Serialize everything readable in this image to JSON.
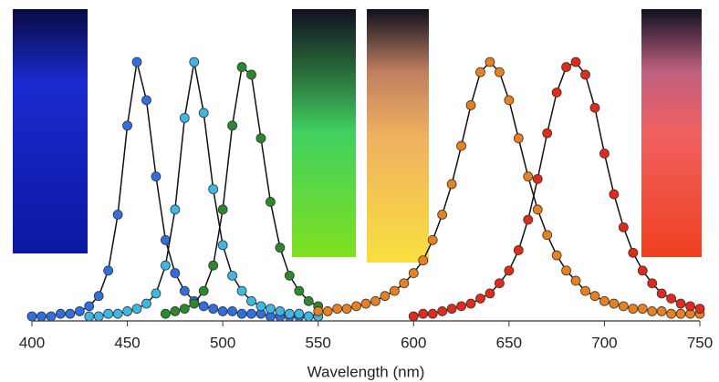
{
  "chart_data": {
    "type": "scatter",
    "x_label": "Wavelength (nm)",
    "xlim": [
      400,
      750
    ],
    "xticks": [
      400,
      450,
      500,
      550,
      600,
      650,
      700,
      750
    ],
    "ylim": [
      0,
      1
    ],
    "series": [
      {
        "color": "#2f6fe0",
        "x": [
          400,
          405,
          410,
          415,
          420,
          425,
          430,
          435,
          440,
          445,
          450,
          455,
          460,
          465,
          470,
          475,
          480,
          485,
          490,
          495,
          500,
          505,
          510,
          515,
          520,
          525,
          530,
          535,
          540,
          545,
          550
        ],
        "values": [
          0,
          0,
          0,
          0.01,
          0.01,
          0.02,
          0.04,
          0.08,
          0.18,
          0.4,
          0.75,
          1,
          0.85,
          0.55,
          0.3,
          0.17,
          0.1,
          0.06,
          0.04,
          0.03,
          0.02,
          0.02,
          0.01,
          0.01,
          0.01,
          0,
          0,
          0,
          0,
          0,
          0
        ]
      },
      {
        "color": "#3cb8e6",
        "x": [
          430,
          435,
          440,
          445,
          450,
          455,
          460,
          465,
          470,
          475,
          480,
          485,
          490,
          495,
          500,
          505,
          510,
          515,
          520,
          525,
          530,
          535,
          540,
          545,
          550
        ],
        "values": [
          0,
          0,
          0.01,
          0.01,
          0.02,
          0.03,
          0.05,
          0.09,
          0.2,
          0.42,
          0.78,
          1,
          0.8,
          0.5,
          0.28,
          0.16,
          0.1,
          0.06,
          0.04,
          0.03,
          0.02,
          0.01,
          0.01,
          0,
          0
        ]
      },
      {
        "color": "#2a8a2a",
        "x": [
          470,
          475,
          480,
          485,
          490,
          495,
          500,
          505,
          510,
          515,
          520,
          525,
          530,
          535,
          540,
          545,
          550
        ],
        "values": [
          0.01,
          0.02,
          0.03,
          0.05,
          0.1,
          0.2,
          0.42,
          0.75,
          0.98,
          0.95,
          0.7,
          0.45,
          0.27,
          0.16,
          0.1,
          0.06,
          0.04
        ]
      },
      {
        "color": "#e8801e",
        "x": [
          550,
          555,
          560,
          565,
          570,
          575,
          580,
          585,
          590,
          595,
          600,
          605,
          610,
          615,
          620,
          625,
          630,
          635,
          640,
          645,
          650,
          655,
          660,
          665,
          670,
          675,
          680,
          685,
          690,
          695,
          700,
          705,
          710,
          715,
          720,
          725,
          730,
          735,
          740,
          745,
          750
        ],
        "values": [
          0.02,
          0.02,
          0.03,
          0.03,
          0.04,
          0.05,
          0.06,
          0.08,
          0.1,
          0.13,
          0.17,
          0.22,
          0.3,
          0.4,
          0.52,
          0.67,
          0.83,
          0.96,
          1,
          0.96,
          0.85,
          0.7,
          0.55,
          0.42,
          0.32,
          0.24,
          0.18,
          0.14,
          0.1,
          0.08,
          0.06,
          0.05,
          0.04,
          0.03,
          0.03,
          0.02,
          0.02,
          0.01,
          0.01,
          0.01,
          0.01
        ]
      },
      {
        "color": "#e02a1a",
        "x": [
          600,
          605,
          610,
          615,
          620,
          625,
          630,
          635,
          640,
          645,
          650,
          655,
          660,
          665,
          670,
          675,
          680,
          685,
          690,
          695,
          700,
          705,
          710,
          715,
          720,
          725,
          730,
          735,
          740,
          745,
          750
        ],
        "values": [
          0,
          0.01,
          0.01,
          0.02,
          0.03,
          0.04,
          0.05,
          0.07,
          0.09,
          0.13,
          0.18,
          0.26,
          0.38,
          0.54,
          0.72,
          0.88,
          0.98,
          1,
          0.95,
          0.82,
          0.64,
          0.48,
          0.35,
          0.25,
          0.18,
          0.13,
          0.09,
          0.07,
          0.05,
          0.04,
          0.03
        ]
      }
    ]
  }
}
